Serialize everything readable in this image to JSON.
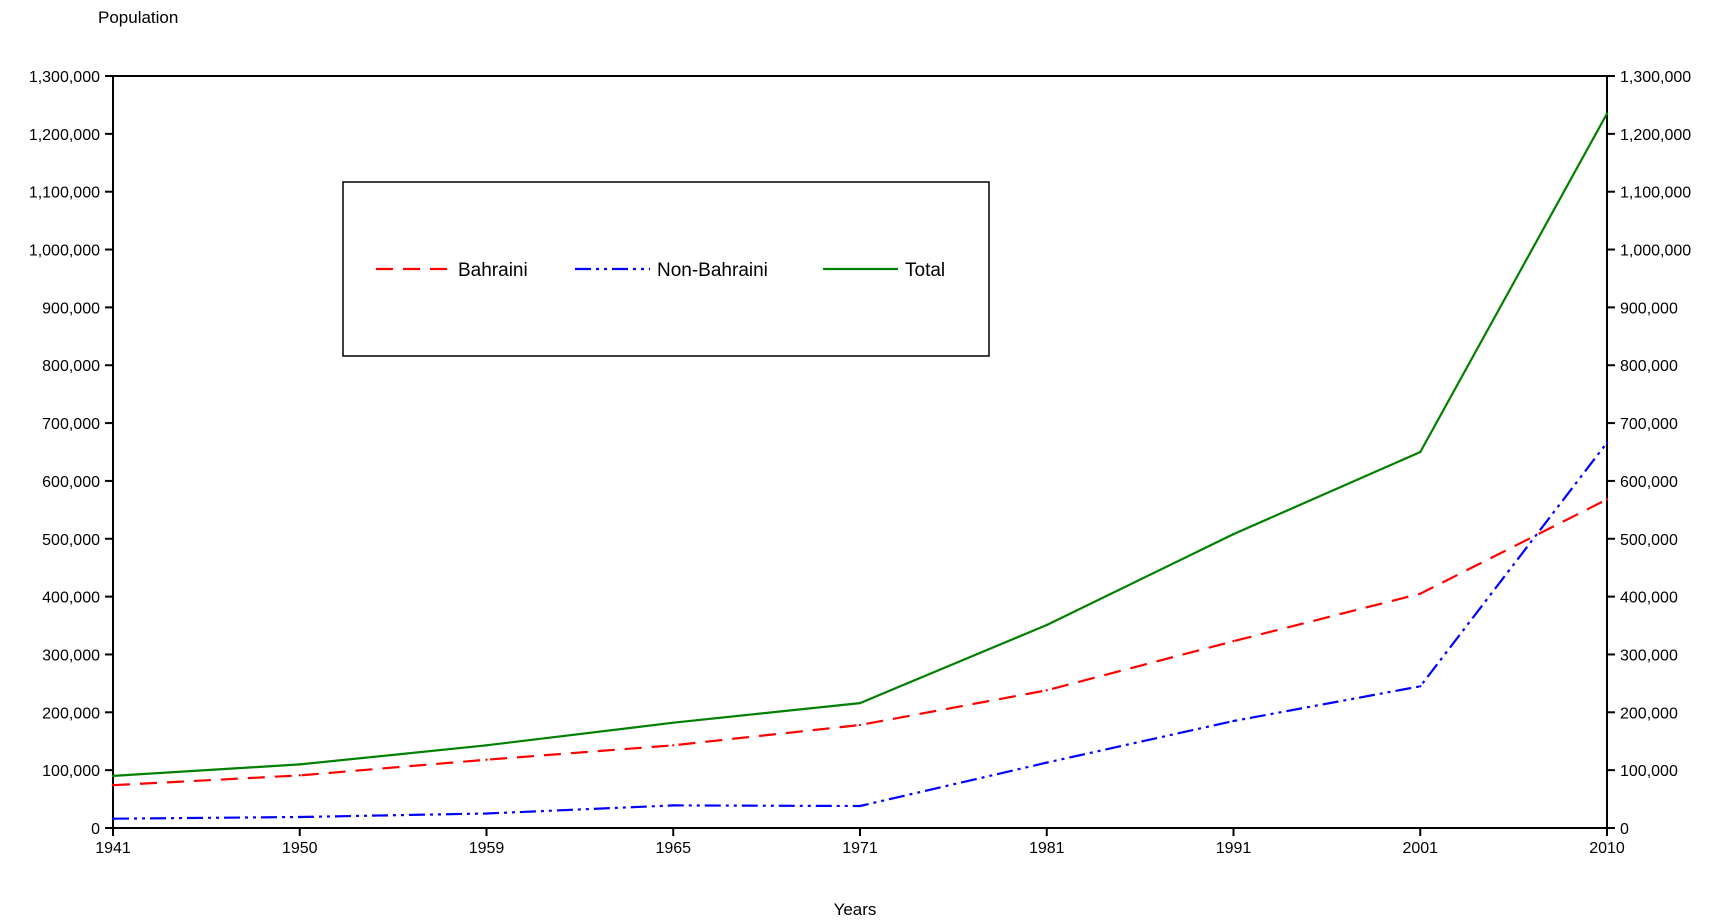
{
  "chart_data": {
    "type": "line",
    "title": "",
    "ylabel": "Population",
    "xlabel": "Years",
    "categories": [
      "1941",
      "1950",
      "1959",
      "1965",
      "1971",
      "1981",
      "1991",
      "2001",
      "2010"
    ],
    "ylim": [
      0,
      1300000
    ],
    "yticks": [
      "0",
      "100,000",
      "200,000",
      "300,000",
      "400,000",
      "500,000",
      "600,000",
      "700,000",
      "800,000",
      "900,000",
      "1,000,000",
      "1,100,000",
      "1,200,000",
      "1,300,000"
    ],
    "grid": false,
    "legend_position": "top-center",
    "series": [
      {
        "name": "Bahraini",
        "color": "#ff0000",
        "dash": "dashed",
        "values": [
          74000,
          91000,
          118000,
          143000,
          178000,
          238000,
          323000,
          405000,
          568000
        ]
      },
      {
        "name": "Non-Bahraini",
        "color": "#0000ff",
        "dash": "dash-dot-dot",
        "values": [
          16000,
          19000,
          25000,
          39000,
          38000,
          113000,
          185000,
          245000,
          666000
        ]
      },
      {
        "name": "Total",
        "color": "#008000",
        "dash": "solid",
        "values": [
          90000,
          110000,
          143000,
          182000,
          216000,
          351000,
          508000,
          650000,
          1235000
        ]
      }
    ]
  }
}
